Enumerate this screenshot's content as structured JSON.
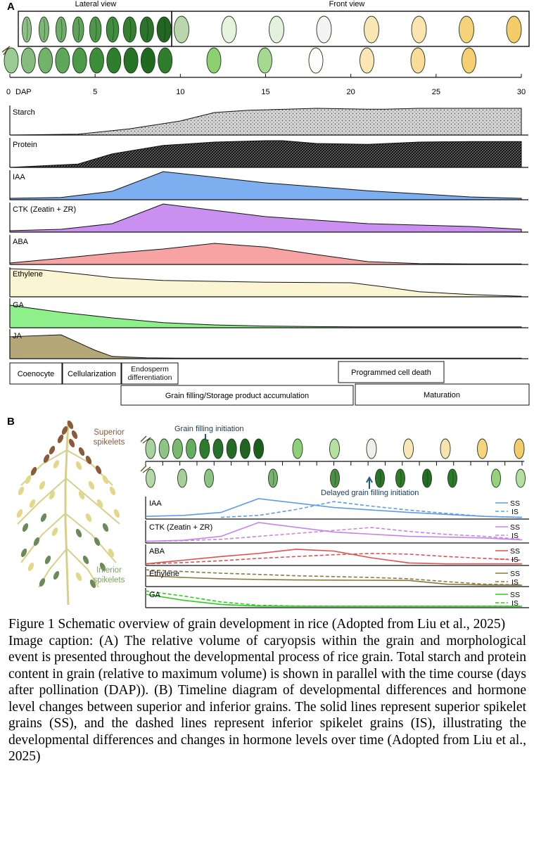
{
  "panel_a": {
    "letter": "A",
    "lateral_view_label": "Lateral view",
    "front_view_label": "Front view",
    "axis": {
      "ticks": [
        {
          "dap": 0,
          "label": "0"
        },
        {
          "dap": 5,
          "label": "5"
        },
        {
          "dap": 10,
          "label": "10"
        },
        {
          "dap": 15,
          "label": "15"
        },
        {
          "dap": 20,
          "label": "20"
        },
        {
          "dap": 25,
          "label": "25"
        },
        {
          "dap": 30,
          "label": "30"
        }
      ],
      "unit_label": "DAP"
    },
    "lateral_grain_colors": [
      "#8fbf86",
      "#7fb677",
      "#6fad68",
      "#5fa35a",
      "#4f984b",
      "#418c3e",
      "#357f33",
      "#2b722a",
      "#236622"
    ],
    "front_grain_colors": [
      "#b9d6ad",
      "#e6f3de",
      "#e4f1dc",
      "#f4f4f4",
      "#fbe7b6",
      "#fbe4b0",
      "#f6d27a",
      "#f4cc6a"
    ],
    "row2_grain_colors": [
      "#9ccb93",
      "#86bd7e",
      "#72b26b",
      "#5fa55a",
      "#4c9a49",
      "#3c8c3a",
      "#2f7e2e",
      "#277326",
      "#1f6a1f",
      "#2e7e2d",
      "#8ed06f",
      "#a4d98f",
      "#fdfdfd",
      "#fbe6b4",
      "#f8dc98",
      "#f5cf72"
    ],
    "hormone_panels": [
      {
        "label": "Starch",
        "color": "#d6d6d6",
        "pattern": "dots",
        "x": [
          0,
          4,
          7,
          10,
          12,
          14,
          18,
          21,
          22,
          24,
          27,
          30
        ],
        "y": [
          0,
          0.03,
          0.22,
          0.5,
          0.8,
          0.88,
          0.95,
          0.92,
          0.92,
          0.95,
          0.95,
          0.95
        ]
      },
      {
        "label": "Protein",
        "color": "#111111",
        "pattern": "hatch",
        "x": [
          0,
          4,
          6,
          9,
          12,
          15,
          16,
          18,
          21,
          24,
          27,
          30
        ],
        "y": [
          0,
          0.12,
          0.48,
          0.78,
          0.9,
          0.95,
          0.95,
          0.85,
          0.82,
          0.9,
          0.92,
          0.92
        ]
      },
      {
        "label": "IAA",
        "color": "#7daff0",
        "x": [
          0,
          3,
          6,
          9,
          15,
          21,
          27,
          30
        ],
        "y": [
          0.05,
          0.08,
          0.3,
          1.0,
          0.6,
          0.32,
          0.1,
          0.05
        ]
      },
      {
        "label": "CTK (Zeatin + ZR)",
        "color": "#c990f0",
        "x": [
          0,
          3,
          6,
          9,
          15,
          21,
          27,
          30
        ],
        "y": [
          0.05,
          0.1,
          0.3,
          1.0,
          0.55,
          0.3,
          0.2,
          0.1
        ]
      },
      {
        "label": "ABA",
        "color": "#f7a3a3",
        "x": [
          0,
          3,
          6,
          9,
          12,
          15,
          18,
          21,
          24,
          27,
          30
        ],
        "y": [
          0.05,
          0.22,
          0.4,
          0.55,
          0.75,
          0.62,
          0.35,
          0.1,
          0.03,
          0.02,
          0.02
        ]
      },
      {
        "label": "Ethylene",
        "color": "#fbf5d3",
        "x": [
          0,
          2,
          4,
          6,
          9,
          12,
          15,
          20,
          22,
          24,
          27,
          30
        ],
        "y": [
          1.0,
          0.95,
          0.82,
          0.68,
          0.58,
          0.55,
          0.52,
          0.5,
          0.35,
          0.18,
          0.08,
          0.02
        ]
      },
      {
        "label": "GA",
        "color": "#8df08a",
        "x": [
          0,
          3,
          6,
          9,
          12,
          15,
          18,
          21,
          24,
          27,
          30
        ],
        "y": [
          0.8,
          0.55,
          0.35,
          0.18,
          0.1,
          0.06,
          0.04,
          0.03,
          0.03,
          0.03,
          0.03
        ]
      },
      {
        "label": "JA",
        "color": "#b5a878",
        "x": [
          0,
          3,
          5,
          6,
          8,
          10,
          13,
          16,
          21,
          24,
          27,
          30
        ],
        "y": [
          0.78,
          0.85,
          0.3,
          0.08,
          0.03,
          0.02,
          0.02,
          0.02,
          0.02,
          0.02,
          0.02,
          0.02
        ]
      }
    ],
    "stages_row1": [
      "Coenocyte",
      "Cellularization",
      "Endosperm differentiation",
      "Programmed cell death"
    ],
    "stages_row2": [
      "Grain filling/Storage product accumulation",
      "Maturation"
    ]
  },
  "panel_b": {
    "letter": "B",
    "superior_label": "Superior spikelets",
    "inferior_label": "Inferior spikelets",
    "grain_filling_initiation": "Grain filling initiation",
    "delayed_grain_filling_initiation": "Delayed grain filling initiation",
    "legend_ss": "SS",
    "legend_is": "IS",
    "ss_grain_colors": [
      "#a9d29e",
      "#8ec584",
      "#79b970",
      "#66ae5f",
      "#2f7b2d",
      "#26702a",
      "#246b24",
      "#1f641f",
      "#1c5f1c",
      "#8ed079",
      "#b7e0a0",
      "#efefef",
      "#fbe6b8",
      "#fbe3ae",
      "#f6d37c",
      "#f4cc6a"
    ],
    "is_grain_colors": [
      "#b5d8a8",
      "#a6cf99",
      "#8fc383",
      "#77b36d",
      "#4c8f46",
      "#2a7528",
      "#2e7b2b",
      "#256f24",
      "#2b7a2a",
      "#95d27b",
      "#b3e0a1"
    ],
    "hormone_panels": [
      {
        "label": "IAA",
        "color": "#5e9ce8",
        "ss": {
          "x": [
            0,
            3,
            6,
            9,
            15,
            21,
            27,
            30
          ],
          "y": [
            0.1,
            0.15,
            0.3,
            1.0,
            0.55,
            0.3,
            0.1,
            0.05
          ]
        },
        "is": {
          "x": [
            6,
            9,
            12,
            15,
            18,
            21,
            24,
            27,
            30
          ],
          "y": [
            0.05,
            0.15,
            0.45,
            0.85,
            0.62,
            0.42,
            0.25,
            0.1,
            0.05
          ]
        }
      },
      {
        "label": "CTK (Zeatin + ZR)",
        "color": "#c784e8",
        "ss": {
          "x": [
            0,
            3,
            6,
            9,
            15,
            21,
            27,
            30
          ],
          "y": [
            0.05,
            0.1,
            0.3,
            1.0,
            0.52,
            0.3,
            0.22,
            0.12
          ]
        },
        "is": {
          "x": [
            0,
            3,
            6,
            9,
            12,
            15,
            18,
            21,
            24,
            27,
            30
          ],
          "y": [
            0.05,
            0.08,
            0.15,
            0.3,
            0.45,
            0.6,
            0.75,
            0.55,
            0.4,
            0.3,
            0.15
          ]
        }
      },
      {
        "label": "ABA",
        "color": "#e05050",
        "ss": {
          "x": [
            0,
            3,
            6,
            9,
            12,
            15,
            18,
            21,
            24,
            27,
            30
          ],
          "y": [
            0.05,
            0.25,
            0.45,
            0.62,
            0.85,
            0.75,
            0.38,
            0.1,
            0.05,
            0.05,
            0.05
          ]
        },
        "is": {
          "x": [
            0,
            3,
            6,
            9,
            12,
            15,
            18,
            21,
            24,
            27,
            30
          ],
          "y": [
            0.05,
            0.12,
            0.22,
            0.35,
            0.45,
            0.55,
            0.62,
            0.58,
            0.45,
            0.35,
            0.25
          ]
        }
      },
      {
        "label": "Ethylene",
        "color": "#8a7a3a",
        "ss": {
          "x": [
            0,
            3,
            6,
            9,
            12,
            15,
            18,
            21,
            24,
            27,
            30
          ],
          "y": [
            0.6,
            0.5,
            0.42,
            0.38,
            0.35,
            0.34,
            0.33,
            0.32,
            0.1,
            0.05,
            0.04
          ]
        },
        "is": {
          "x": [
            0,
            3,
            6,
            9,
            12,
            15,
            18,
            21,
            24,
            27,
            30
          ],
          "y": [
            0.95,
            0.85,
            0.75,
            0.68,
            0.6,
            0.55,
            0.5,
            0.42,
            0.25,
            0.1,
            0.06
          ]
        }
      },
      {
        "label": "GA",
        "color": "#2ecc1e",
        "ss": {
          "x": [
            0,
            3,
            6,
            9,
            12,
            15,
            18,
            21,
            24,
            27,
            30
          ],
          "y": [
            0.75,
            0.4,
            0.15,
            0.05,
            0.04,
            0.04,
            0.04,
            0.04,
            0.04,
            0.04,
            0.04
          ]
        },
        "is": {
          "x": [
            0,
            3,
            6,
            9,
            12,
            15,
            18,
            21,
            24,
            27,
            30
          ],
          "y": [
            0.95,
            0.65,
            0.3,
            0.1,
            0.06,
            0.05,
            0.05,
            0.05,
            0.05,
            0.05,
            0.05
          ]
        }
      }
    ]
  },
  "caption": {
    "title": "Figure 1 Schematic overview of grain development in rice (Adopted from Liu et al., 2025)",
    "body": "Image caption: (A) The relative volume of caryopsis within the grain and morphological event is presented throughout the developmental process of rice grain. Total starch and protein content in grain (relative to maximum volume) is shown in parallel with the time course (days after pollination (DAP)). (B) Timeline diagram of developmental differences and hormone level changes between superior and inferior grains. The solid lines represent superior spikelet grains (SS), and the dashed lines represent inferior spikelet grains (IS), illustrating the developmental differences and changes in hormone levels over time (Adopted from Liu et al., 2025)"
  }
}
